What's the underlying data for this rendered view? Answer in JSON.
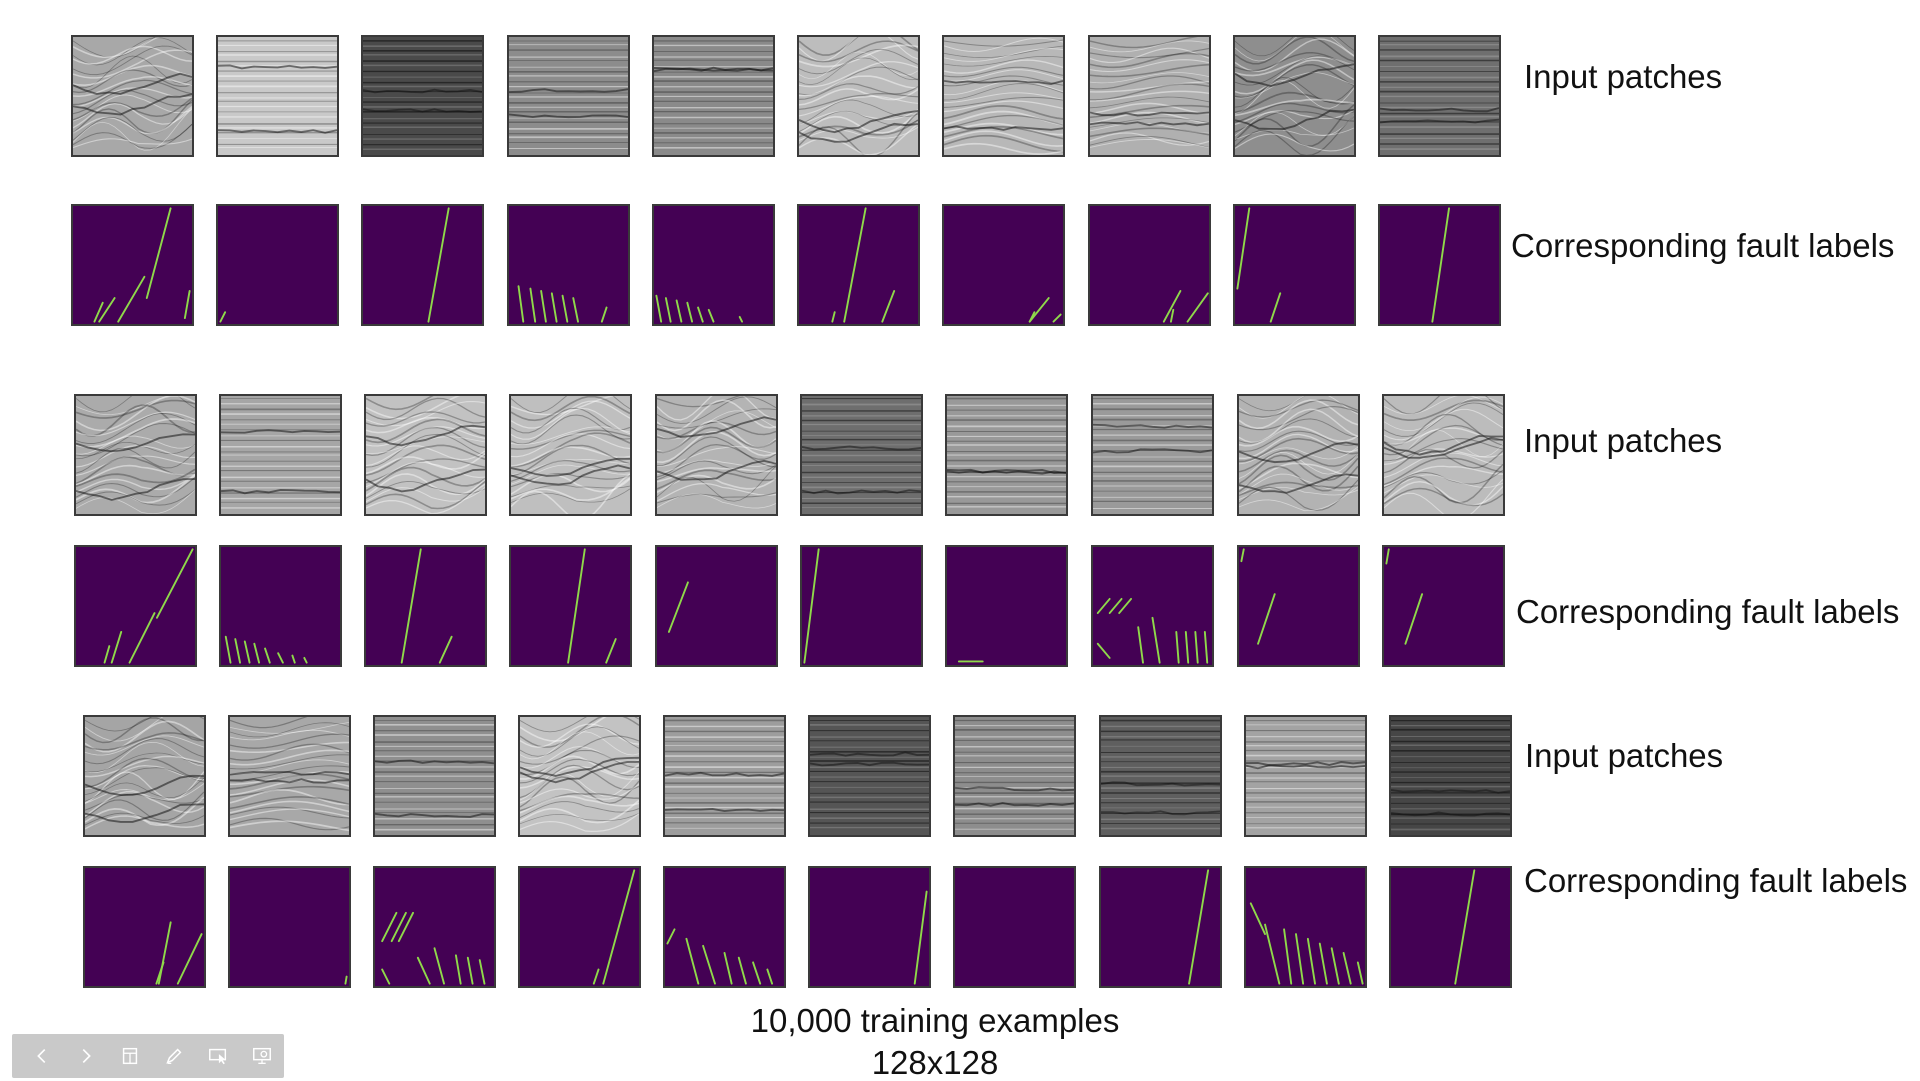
{
  "slide": {
    "caption_line1": "10,000 training examples",
    "caption_line2": "128x128"
  },
  "groups": [
    {
      "input_label": "Input patches",
      "label_label": "Corresponding fault labels",
      "inputs": [
        {
          "tone": "#a8a8a8",
          "dark": false,
          "feature": "fold"
        },
        {
          "tone": "#c9c9c9",
          "dark": false,
          "feature": "flat"
        },
        {
          "tone": "#4a4a4a",
          "dark": true,
          "feature": "flat"
        },
        {
          "tone": "#8c8c8c",
          "dark": false,
          "feature": "flat"
        },
        {
          "tone": "#8a8a8a",
          "dark": false,
          "feature": "flat"
        },
        {
          "tone": "#bdbdbd",
          "dark": false,
          "feature": "fold"
        },
        {
          "tone": "#b8b8b8",
          "dark": false,
          "feature": "wave"
        },
        {
          "tone": "#b0b0b0",
          "dark": false,
          "feature": "wave"
        },
        {
          "tone": "#8e8e8e",
          "dark": false,
          "feature": "fold"
        },
        {
          "tone": "#6f6f6f",
          "dark": true,
          "feature": "flat"
        }
      ],
      "labels": [
        {
          "faults": [
            [
              0.82,
              0.02,
              0.62,
              0.78
            ],
            [
              0.6,
              0.6,
              0.38,
              0.98
            ],
            [
              0.35,
              0.78,
              0.22,
              0.98
            ],
            [
              0.25,
              0.82,
              0.18,
              0.98
            ],
            [
              0.98,
              0.72,
              0.94,
              0.95
            ]
          ]
        },
        {
          "faults": [
            [
              0.06,
              0.9,
              0.02,
              0.98
            ]
          ]
        },
        {
          "faults": [
            [
              0.72,
              0.02,
              0.55,
              0.98
            ]
          ]
        },
        {
          "faults": [
            [
              0.08,
              0.68,
              0.12,
              0.98
            ],
            [
              0.18,
              0.7,
              0.22,
              0.98
            ],
            [
              0.27,
              0.72,
              0.31,
              0.98
            ],
            [
              0.36,
              0.74,
              0.4,
              0.98
            ],
            [
              0.45,
              0.76,
              0.49,
              0.98
            ],
            [
              0.54,
              0.78,
              0.58,
              0.98
            ],
            [
              0.82,
              0.86,
              0.78,
              0.98
            ]
          ]
        },
        {
          "faults": [
            [
              0.02,
              0.76,
              0.06,
              0.98
            ],
            [
              0.1,
              0.78,
              0.14,
              0.98
            ],
            [
              0.19,
              0.8,
              0.23,
              0.98
            ],
            [
              0.28,
              0.82,
              0.32,
              0.98
            ],
            [
              0.37,
              0.86,
              0.41,
              0.98
            ],
            [
              0.46,
              0.88,
              0.5,
              0.98
            ],
            [
              0.72,
              0.94,
              0.74,
              0.98
            ]
          ]
        },
        {
          "faults": [
            [
              0.56,
              0.02,
              0.38,
              0.98
            ],
            [
              0.3,
              0.9,
              0.28,
              0.98
            ],
            [
              0.8,
              0.72,
              0.7,
              0.98
            ]
          ]
        },
        {
          "faults": [
            [
              0.88,
              0.78,
              0.72,
              0.98
            ],
            [
              0.76,
              0.9,
              0.72,
              0.98
            ],
            [
              0.98,
              0.92,
              0.92,
              0.98
            ]
          ]
        },
        {
          "faults": [
            [
              0.76,
              0.72,
              0.62,
              0.98
            ],
            [
              0.99,
              0.74,
              0.82,
              0.98
            ],
            [
              0.7,
              0.88,
              0.68,
              0.98
            ]
          ]
        },
        {
          "faults": [
            [
              0.12,
              0.02,
              0.02,
              0.7
            ],
            [
              0.38,
              0.74,
              0.3,
              0.98
            ]
          ]
        },
        {
          "faults": [
            [
              0.58,
              0.02,
              0.44,
              0.98
            ]
          ]
        }
      ]
    },
    {
      "input_label": "Input patches",
      "label_label": "Corresponding fault labels",
      "inputs": [
        {
          "tone": "#ababab",
          "dark": false,
          "feature": "fold"
        },
        {
          "tone": "#a6a6a6",
          "dark": false,
          "feature": "flat"
        },
        {
          "tone": "#c2c2c2",
          "dark": false,
          "feature": "fold"
        },
        {
          "tone": "#bfbfbf",
          "dark": false,
          "feature": "fold"
        },
        {
          "tone": "#b4b4b4",
          "dark": false,
          "feature": "fold"
        },
        {
          "tone": "#6e6e6e",
          "dark": true,
          "feature": "flat"
        },
        {
          "tone": "#999999",
          "dark": false,
          "feature": "flat"
        },
        {
          "tone": "#9a9a9a",
          "dark": false,
          "feature": "flat"
        },
        {
          "tone": "#b3b3b3",
          "dark": false,
          "feature": "fold"
        },
        {
          "tone": "#bcbcbc",
          "dark": false,
          "feature": "fold"
        }
      ],
      "labels": [
        {
          "faults": [
            [
              0.98,
              0.02,
              0.68,
              0.6
            ],
            [
              0.66,
              0.56,
              0.45,
              0.98
            ],
            [
              0.38,
              0.72,
              0.3,
              0.98
            ],
            [
              0.28,
              0.84,
              0.24,
              0.98
            ]
          ]
        },
        {
          "faults": [
            [
              0.04,
              0.76,
              0.08,
              0.98
            ],
            [
              0.12,
              0.78,
              0.16,
              0.98
            ],
            [
              0.2,
              0.8,
              0.24,
              0.98
            ],
            [
              0.28,
              0.82,
              0.32,
              0.98
            ],
            [
              0.37,
              0.86,
              0.41,
              0.98
            ],
            [
              0.48,
              0.9,
              0.52,
              0.98
            ],
            [
              0.6,
              0.92,
              0.62,
              0.98
            ],
            [
              0.7,
              0.94,
              0.72,
              0.98
            ]
          ]
        },
        {
          "faults": [
            [
              0.46,
              0.02,
              0.3,
              0.98
            ],
            [
              0.72,
              0.76,
              0.62,
              0.98
            ]
          ]
        },
        {
          "faults": [
            [
              0.62,
              0.02,
              0.48,
              0.98
            ],
            [
              0.88,
              0.78,
              0.8,
              0.98
            ]
          ]
        },
        {
          "faults": [
            [
              0.26,
              0.3,
              0.1,
              0.72
            ]
          ]
        },
        {
          "faults": [
            [
              0.14,
              0.02,
              0.02,
              0.98
            ]
          ]
        },
        {
          "faults": [
            [
              0.1,
              0.97,
              0.3,
              0.97
            ]
          ]
        },
        {
          "faults": [
            [
              0.14,
              0.44,
              0.04,
              0.56
            ],
            [
              0.24,
              0.44,
              0.14,
              0.56
            ],
            [
              0.32,
              0.44,
              0.22,
              0.56
            ],
            [
              0.04,
              0.82,
              0.14,
              0.94
            ],
            [
              0.38,
              0.68,
              0.42,
              0.98
            ],
            [
              0.5,
              0.6,
              0.56,
              0.98
            ],
            [
              0.7,
              0.72,
              0.72,
              0.98
            ],
            [
              0.78,
              0.72,
              0.8,
              0.98
            ],
            [
              0.86,
              0.72,
              0.88,
              0.98
            ],
            [
              0.94,
              0.72,
              0.96,
              0.98
            ]
          ]
        },
        {
          "faults": [
            [
              0.3,
              0.4,
              0.16,
              0.82
            ],
            [
              0.04,
              0.02,
              0.02,
              0.12
            ]
          ]
        },
        {
          "faults": [
            [
              0.32,
              0.4,
              0.18,
              0.82
            ],
            [
              0.04,
              0.02,
              0.02,
              0.14
            ]
          ]
        }
      ]
    },
    {
      "input_label": "Input patches",
      "label_label": "Corresponding fault labels",
      "inputs": [
        {
          "tone": "#a5a5a5",
          "dark": false,
          "feature": "fold"
        },
        {
          "tone": "#a8a8a8",
          "dark": false,
          "feature": "wave"
        },
        {
          "tone": "#8f8f8f",
          "dark": false,
          "feature": "flat"
        },
        {
          "tone": "#c3c3c3",
          "dark": false,
          "feature": "fold"
        },
        {
          "tone": "#9d9d9d",
          "dark": false,
          "feature": "flat"
        },
        {
          "tone": "#555555",
          "dark": true,
          "feature": "flat"
        },
        {
          "tone": "#8d8d8d",
          "dark": false,
          "feature": "flat"
        },
        {
          "tone": "#5f5f5f",
          "dark": true,
          "feature": "flat"
        },
        {
          "tone": "#a3a3a3",
          "dark": false,
          "feature": "flat"
        },
        {
          "tone": "#464646",
          "dark": true,
          "feature": "flat"
        }
      ],
      "labels": [
        {
          "faults": [
            [
              0.98,
              0.56,
              0.78,
              0.98
            ],
            [
              0.72,
              0.46,
              0.62,
              0.98
            ],
            [
              0.66,
              0.8,
              0.6,
              0.98
            ]
          ]
        },
        {
          "faults": [
            [
              0.98,
              0.92,
              0.97,
              0.98
            ]
          ]
        },
        {
          "faults": [
            [
              0.18,
              0.38,
              0.06,
              0.62
            ],
            [
              0.26,
              0.38,
              0.14,
              0.62
            ],
            [
              0.32,
              0.38,
              0.2,
              0.62
            ],
            [
              0.06,
              0.86,
              0.12,
              0.98
            ],
            [
              0.36,
              0.76,
              0.46,
              0.98
            ],
            [
              0.5,
              0.68,
              0.58,
              0.98
            ],
            [
              0.68,
              0.74,
              0.72,
              0.98
            ],
            [
              0.78,
              0.76,
              0.82,
              0.98
            ],
            [
              0.88,
              0.78,
              0.92,
              0.98
            ]
          ]
        },
        {
          "faults": [
            [
              0.96,
              0.02,
              0.7,
              0.98
            ],
            [
              0.66,
              0.86,
              0.62,
              0.98
            ]
          ]
        },
        {
          "faults": [
            [
              0.08,
              0.52,
              0.02,
              0.64
            ],
            [
              0.18,
              0.6,
              0.28,
              0.98
            ],
            [
              0.32,
              0.66,
              0.42,
              0.98
            ],
            [
              0.5,
              0.72,
              0.56,
              0.98
            ],
            [
              0.62,
              0.76,
              0.68,
              0.98
            ],
            [
              0.74,
              0.8,
              0.8,
              0.98
            ],
            [
              0.86,
              0.86,
              0.9,
              0.98
            ]
          ]
        },
        {
          "faults": [
            [
              0.98,
              0.2,
              0.88,
              0.98
            ]
          ]
        },
        {
          "faults": []
        },
        {
          "faults": [
            [
              0.9,
              0.02,
              0.74,
              0.98
            ]
          ]
        },
        {
          "faults": [
            [
              0.04,
              0.3,
              0.16,
              0.56
            ],
            [
              0.16,
              0.48,
              0.28,
              0.98
            ],
            [
              0.32,
              0.52,
              0.38,
              0.98
            ],
            [
              0.42,
              0.56,
              0.48,
              0.98
            ],
            [
              0.52,
              0.6,
              0.58,
              0.98
            ],
            [
              0.62,
              0.64,
              0.68,
              0.98
            ],
            [
              0.72,
              0.68,
              0.78,
              0.98
            ],
            [
              0.82,
              0.72,
              0.88,
              0.98
            ],
            [
              0.94,
              0.8,
              0.98,
              0.98
            ]
          ]
        },
        {
          "faults": [
            [
              0.7,
              0.02,
              0.54,
              0.98
            ]
          ]
        }
      ]
    }
  ],
  "toolbar": {
    "buttons": [
      {
        "name": "previous-slide-button",
        "icon": "chevron-left-icon"
      },
      {
        "name": "next-slide-button",
        "icon": "chevron-right-icon"
      },
      {
        "name": "slides-overview-button",
        "icon": "slides-grid-icon"
      },
      {
        "name": "pen-tool-button",
        "icon": "pen-icon"
      },
      {
        "name": "pointer-options-button",
        "icon": "screen-pointer-icon"
      },
      {
        "name": "presenter-view-button",
        "icon": "presenter-icon"
      }
    ]
  },
  "colors": {
    "label_background": "#440154",
    "fault_line": "#8fd94a",
    "patch_border": "#3a3a3a"
  }
}
